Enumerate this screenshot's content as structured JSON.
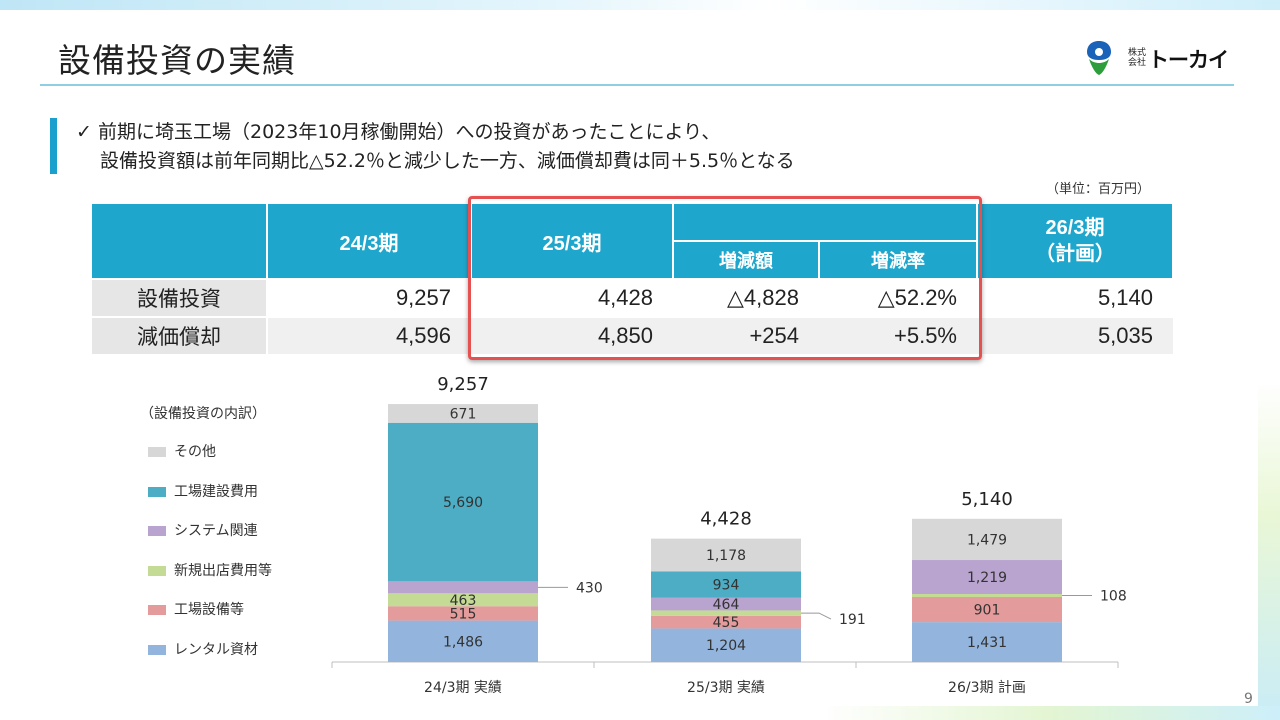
{
  "title": "設備投資の実績",
  "logo": {
    "small": "株式会社",
    "text": "トーカイ"
  },
  "note": {
    "check": "✓",
    "line1": "前期に埼玉工場（2023年10月稼働開始）への投資があったことにより、",
    "line2": "設備投資額は前年同期比△52.2％と減少した一方、減価償却費は同＋5.5％となる"
  },
  "unit": "（単位：百万円）",
  "table": {
    "headers": {
      "fy24": "24/3期",
      "fy25": "25/3期",
      "change_amount": "増減額",
      "change_rate": "増減率",
      "fy26_line1": "26/3期",
      "fy26_line2": "（計画）"
    },
    "rows": [
      {
        "label": "設備投資",
        "fy24": "9,257",
        "fy25": "4,428",
        "change_amount": "△4,828",
        "change_rate": "△52.2%",
        "fy26": "5,140"
      },
      {
        "label": "減価償却",
        "fy24": "4,596",
        "fy25": "4,850",
        "change_amount": "+254",
        "change_rate": "+5.5%",
        "fy26": "5,035"
      }
    ]
  },
  "page_number": "9",
  "chart_data": {
    "type": "bar",
    "stacked": true,
    "legend_title": "（設備投資の内訳）",
    "legend_position": "left",
    "categories": [
      "24/3期 実績",
      "25/3期 実績",
      "26/3期 計画"
    ],
    "totals": [
      9257,
      4428,
      5140
    ],
    "series": [
      {
        "name": "レンタル資材",
        "color": "#93b4dc",
        "values": [
          1486,
          1204,
          1431
        ]
      },
      {
        "name": "工場設備等",
        "color": "#e39b9b",
        "values": [
          515,
          455,
          901
        ]
      },
      {
        "name": "新規出店費用等",
        "color": "#c3db95",
        "values": [
          463,
          191,
          108
        ]
      },
      {
        "name": "システム関連",
        "color": "#b8a4cf",
        "values": [
          430,
          464,
          1219
        ]
      },
      {
        "name": "工場建設費用",
        "color": "#4cadc5",
        "values": [
          5690,
          934,
          0
        ]
      },
      {
        "name": "その他",
        "color": "#d7d7d7",
        "values": [
          671,
          1178,
          1479
        ]
      }
    ],
    "data_labels": [
      [
        "1,486",
        "1,204",
        "1,431"
      ],
      [
        "515",
        "455",
        "901"
      ],
      [
        "463",
        "191",
        "108"
      ],
      [
        "430",
        "464",
        "1,219"
      ],
      [
        "5,690",
        "934",
        ""
      ],
      [
        "671",
        "1,178",
        "1,479"
      ]
    ],
    "total_labels": [
      "9,257",
      "4,428",
      "5,140"
    ],
    "ylim": [
      0,
      9257
    ],
    "grid": false
  }
}
